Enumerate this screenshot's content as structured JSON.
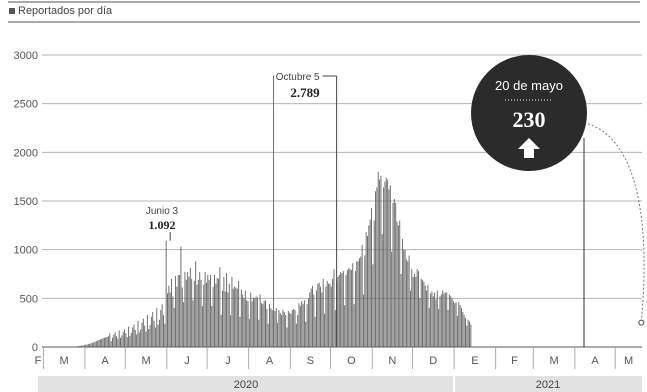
{
  "chart_data": {
    "type": "bar",
    "legend": "Reportados por día",
    "yticks": [
      0,
      500,
      1000,
      1500,
      2000,
      2500,
      3000
    ],
    "ylim": [
      0,
      3000
    ],
    "grid": true,
    "month_labels": [
      "F",
      "M",
      "A",
      "M",
      "J",
      "J",
      "A",
      "S",
      "O",
      "N",
      "D",
      "E",
      "F",
      "M",
      "A",
      "M"
    ],
    "year_labels": [
      "2020",
      "2021"
    ],
    "x_start": "2020-02-29",
    "x_end": "2021-05-20",
    "series": [
      {
        "values": [
          0,
          0,
          0,
          0,
          0,
          0,
          0,
          0,
          0,
          0,
          0,
          0,
          0,
          0,
          0,
          0,
          0,
          0,
          0,
          1,
          1,
          2,
          3,
          4,
          5,
          6,
          8,
          10,
          12,
          14,
          16,
          19,
          22,
          26,
          30,
          34,
          38,
          43,
          48,
          54,
          60,
          66,
          72,
          78,
          84,
          90,
          95,
          100,
          105,
          110,
          140,
          60,
          95,
          125,
          150,
          110,
          85,
          170,
          95,
          120,
          155,
          180,
          140,
          100,
          210,
          115,
          145,
          200,
          230,
          175,
          130,
          270,
          150,
          180,
          250,
          290,
          220,
          160,
          330,
          185,
          225,
          310,
          360,
          270,
          200,
          400,
          230,
          280,
          380,
          440,
          330,
          240,
          1092,
          550,
          630,
          560,
          700,
          520,
          400,
          730,
          620,
          740,
          740,
          1030,
          610,
          460,
          770,
          690,
          770,
          720,
          810,
          700,
          480,
          680,
          880,
          640,
          690,
          770,
          690,
          420,
          640,
          770,
          660,
          740,
          690,
          740,
          420,
          620,
          740,
          650,
          710,
          700,
          820,
          330,
          580,
          720,
          570,
          760,
          560,
          650,
          330,
          720,
          600,
          620,
          610,
          600,
          680,
          310,
          590,
          540,
          500,
          580,
          480,
          470,
          290,
          560,
          470,
          510,
          500,
          520,
          510,
          280,
          540,
          450,
          440,
          470,
          480,
          390,
          240,
          440,
          400,
          380,
          2789,
          370,
          400,
          250,
          380,
          350,
          330,
          380,
          360,
          330,
          200,
          370,
          350,
          340,
          380,
          390,
          380,
          240,
          330,
          450,
          420,
          470,
          440,
          480,
          260,
          440,
          500,
          560,
          600,
          630,
          540,
          310,
          580,
          650,
          660,
          620,
          560,
          700,
          340,
          620,
          680,
          650,
          650,
          620,
          700,
          800,
          380,
          680,
          720,
          740,
          770,
          760,
          780,
          430,
          740,
          790,
          810,
          800,
          790,
          860,
          440,
          780,
          880,
          880,
          910,
          930,
          1050,
          540,
          940,
          1180,
          1140,
          1250,
          1310,
          1430,
          850,
          1300,
          1600,
          1640,
          1800,
          1720,
          1760,
          1160,
          1640,
          1700,
          1740,
          1720,
          1620,
          1660,
          980,
          1480,
          1520,
          1480,
          1290,
          1250,
          1300,
          750,
          1110,
          1000,
          1000,
          900,
          880,
          940,
          580,
          800,
          720,
          750,
          720,
          800,
          780,
          500,
          700,
          690,
          670,
          630,
          580,
          640,
          400,
          550,
          570,
          520,
          560,
          490,
          580,
          390,
          520,
          540,
          580,
          550,
          560,
          560,
          380,
          540,
          520,
          500,
          470,
          450,
          460,
          320,
          460,
          430,
          400,
          360,
          330,
          300,
          220,
          280,
          260,
          230
        ]
      }
    ],
    "annotations": [
      {
        "date": "Junio 3",
        "value": "1.092"
      },
      {
        "date": "Octubre 5",
        "value": "2.789"
      },
      {
        "date": "20 de mayo",
        "value": "230"
      }
    ]
  }
}
